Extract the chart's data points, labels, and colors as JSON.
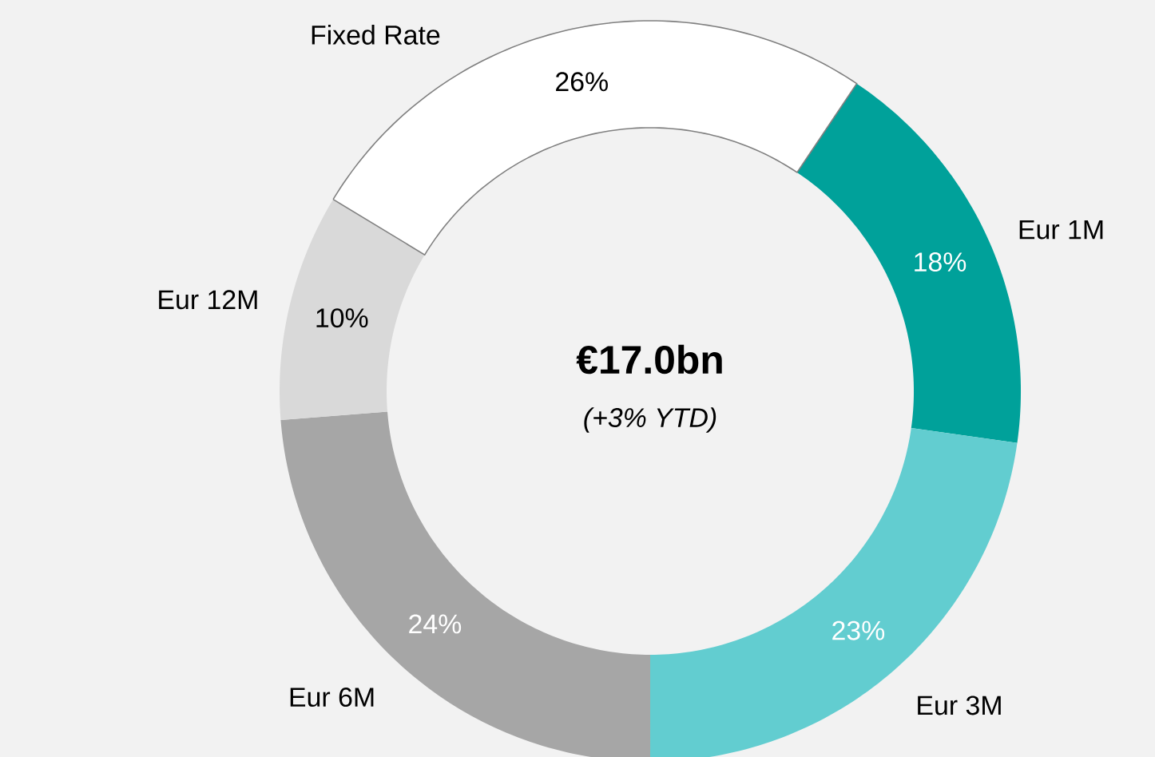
{
  "chart_data": {
    "type": "donut",
    "categories": [
      "Eur 1M",
      "Eur 3M",
      "Eur 6M",
      "Eur 12M",
      "Fixed Rate"
    ],
    "values": [
      18,
      23,
      24,
      10,
      26
    ],
    "colors": [
      "#00a19a",
      "#62cdd0",
      "#a6a6a6",
      "#d9d9d9",
      "#ffffff"
    ],
    "value_labels": [
      "18%",
      "23%",
      "24%",
      "10%",
      "26%"
    ],
    "annotations": [
      "€17.0bn",
      "(+3% YTD)"
    ]
  }
}
